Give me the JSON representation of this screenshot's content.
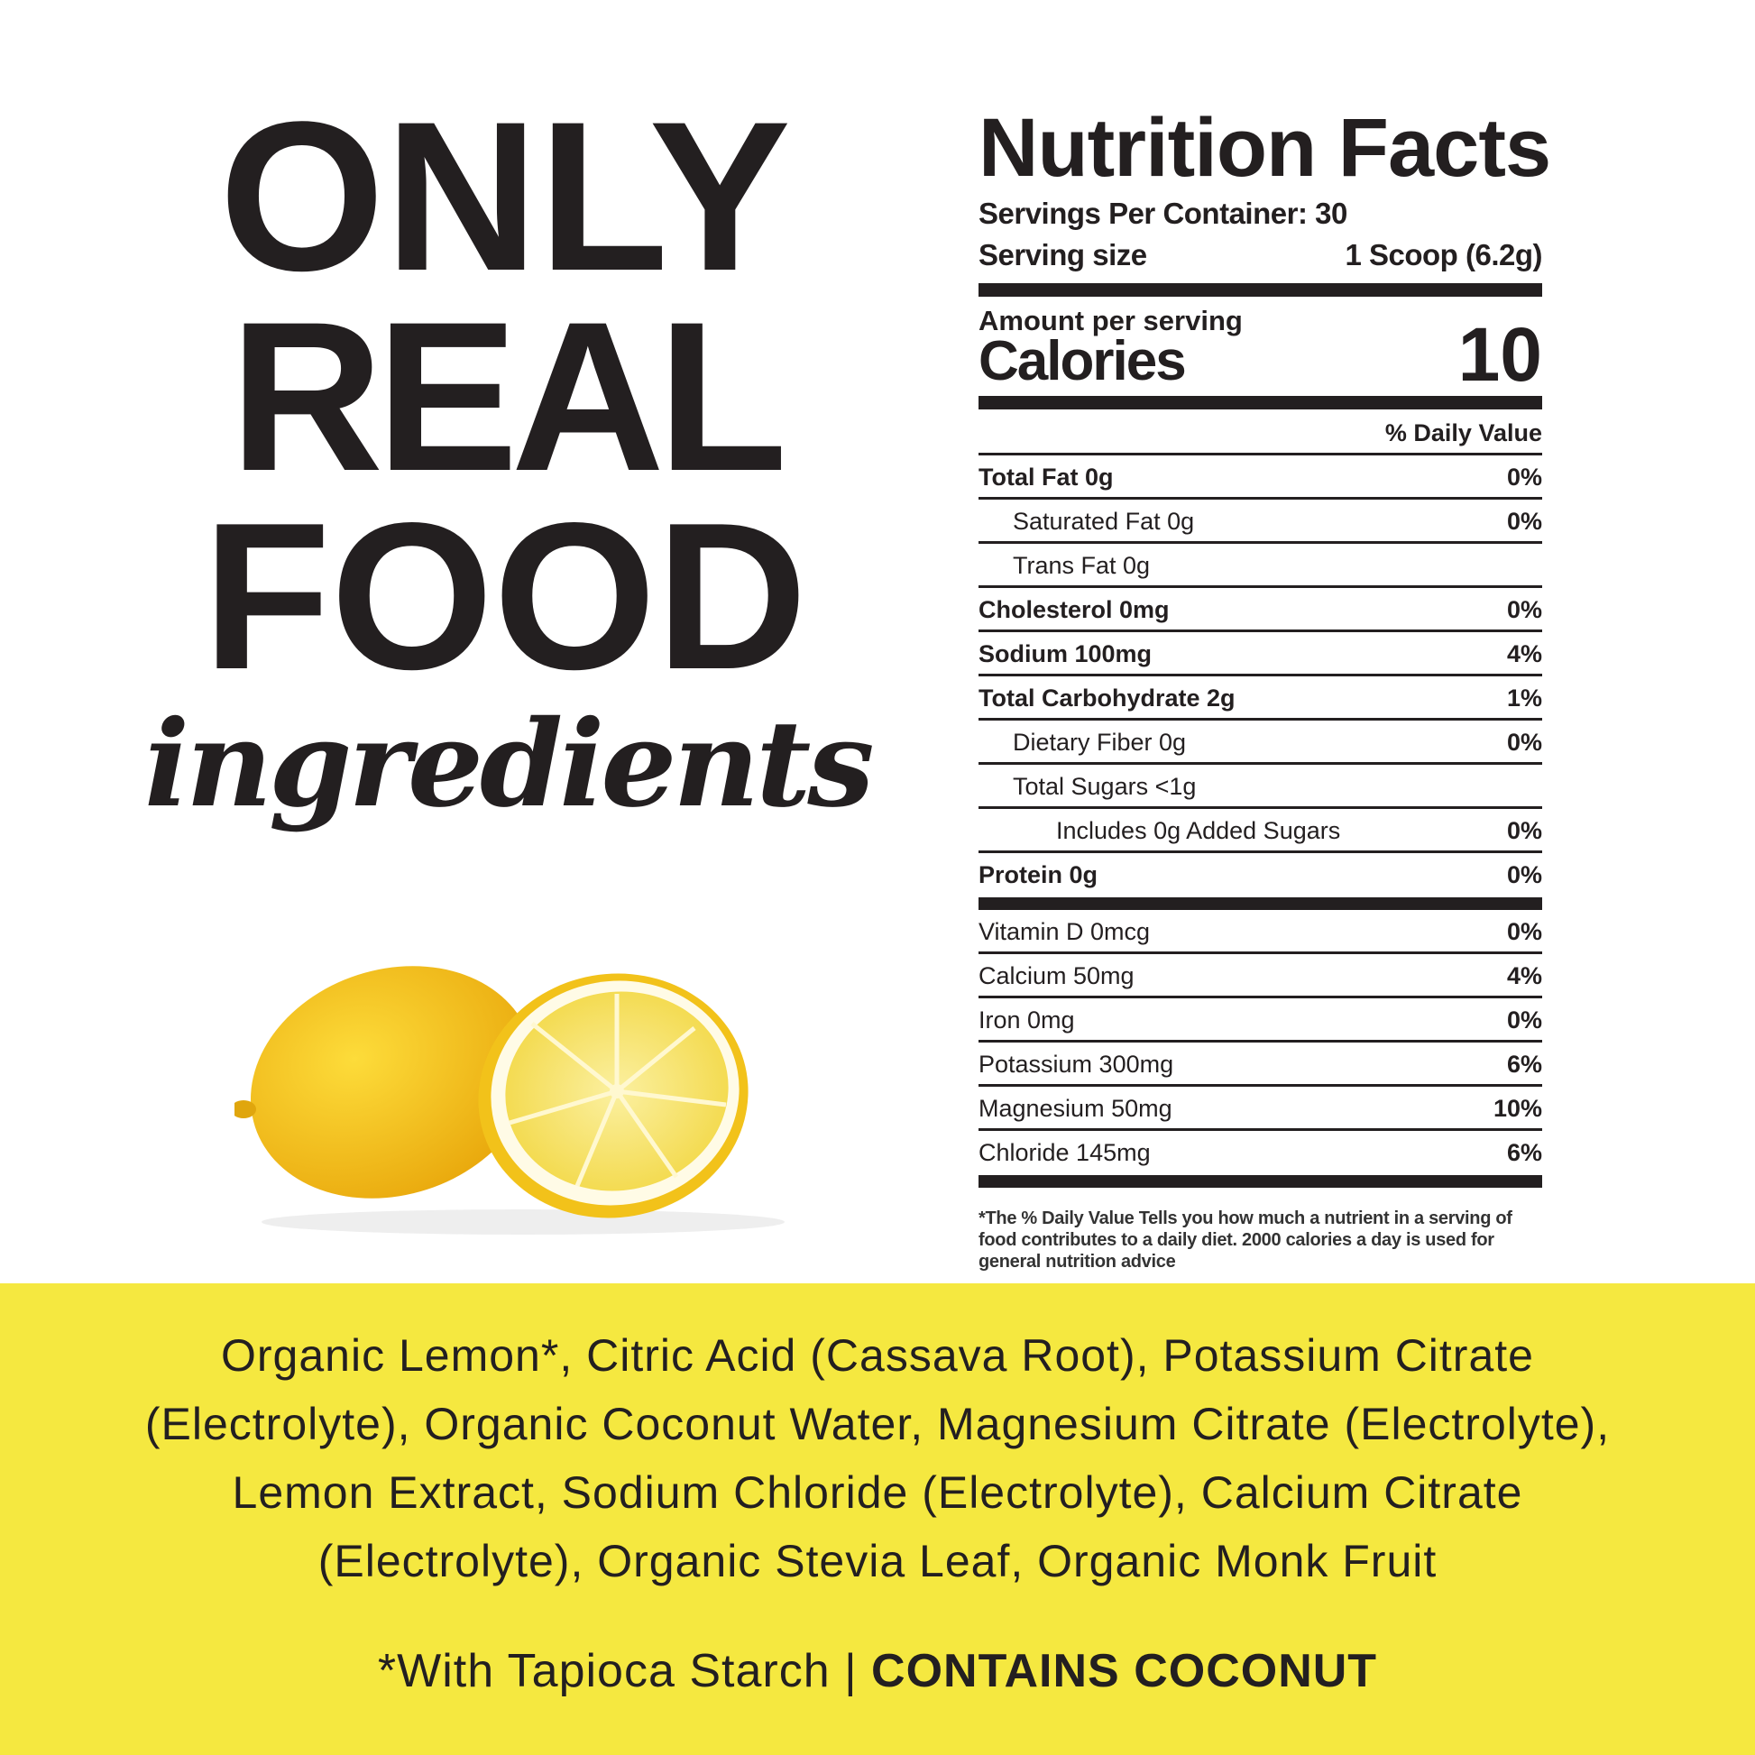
{
  "headline": {
    "line1": "ONLY",
    "line2": "REAL",
    "line3": "FOOD",
    "script": "ingredients"
  },
  "colors": {
    "band": "#f5e840",
    "text": "#231f20",
    "lemon": "#f7c41a"
  },
  "image": {
    "icon": "lemon-illustration"
  },
  "nutrition": {
    "title": "Nutrition Facts",
    "servings_per_container": "Servings Per Container: 30",
    "serving_size_label": "Serving size",
    "serving_size_value": "1 Scoop (6.2g)",
    "amount_per_serving": "Amount per serving",
    "calories_label": "Calories",
    "calories_value": "10",
    "daily_value_header": "% Daily Value",
    "rows": [
      {
        "name": "Total Fat 0g",
        "dv": "0%"
      },
      {
        "name": "Saturated Fat 0g",
        "dv": "0%"
      },
      {
        "name": "Trans Fat 0g",
        "dv": ""
      },
      {
        "name": "Cholesterol 0mg",
        "dv": "0%"
      },
      {
        "name": "Sodium 100mg",
        "dv": "4%"
      },
      {
        "name": "Total Carbohydrate 2g",
        "dv": "1%"
      },
      {
        "name": "Dietary Fiber 0g",
        "dv": "0%"
      },
      {
        "name": "Total Sugars <1g",
        "dv": ""
      },
      {
        "name": "Includes 0g Added Sugars",
        "dv": "0%"
      },
      {
        "name": "Protein 0g",
        "dv": "0%"
      }
    ],
    "minerals": [
      {
        "name": "Vitamin D 0mcg",
        "dv": "0%"
      },
      {
        "name": "Calcium 50mg",
        "dv": "4%"
      },
      {
        "name": "Iron 0mg",
        "dv": "0%"
      },
      {
        "name": "Potassium 300mg",
        "dv": "6%"
      },
      {
        "name": "Magnesium 50mg",
        "dv": "10%"
      },
      {
        "name": "Chloride 145mg",
        "dv": "6%"
      }
    ],
    "footnote": "*The % Daily Value Tells you how much a nutrient in a serving of food contributes to a daily diet. 2000 calories a day is used for general nutrition advice"
  },
  "ingredients": {
    "lines": [
      "Organic Lemon*, Citric Acid (Cassava Root), Potassium Citrate",
      "(Electrolyte), Organic Coconut Water, Magnesium Citrate (Electrolyte),",
      "Lemon Extract, Sodium Chloride (Electrolyte), Calcium Citrate",
      "(Electrolyte), Organic Stevia Leaf, Organic Monk Fruit"
    ],
    "note": "*With Tapioca Starch | ",
    "allergen": "CONTAINS COCONUT"
  }
}
